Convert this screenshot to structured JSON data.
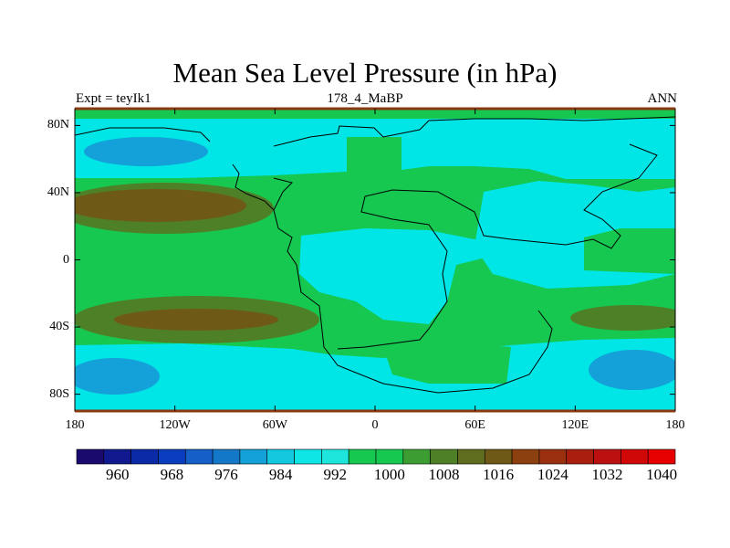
{
  "title": "Mean Sea Level Pressure (in hPa)",
  "subtitle_left": "Expt = teyIk1",
  "subtitle_center": "178_4_MaBP",
  "subtitle_right": "ANN",
  "y_axis": {
    "ticks": [
      {
        "label": "80N",
        "lat": 80
      },
      {
        "label": "40N",
        "lat": 40
      },
      {
        "label": "0",
        "lat": 0
      },
      {
        "label": "40S",
        "lat": -40
      },
      {
        "label": "80S",
        "lat": -80
      }
    ]
  },
  "x_axis": {
    "ticks": [
      {
        "label": "180",
        "lon": -180
      },
      {
        "label": "120W",
        "lon": -120
      },
      {
        "label": "60W",
        "lon": -60
      },
      {
        "label": "0",
        "lon": 0
      },
      {
        "label": "60E",
        "lon": 60
      },
      {
        "label": "120E",
        "lon": 120
      },
      {
        "label": "180",
        "lon": 180
      }
    ]
  },
  "colorbar": {
    "colors": [
      "#1a0a6e",
      "#101a8e",
      "#0a2aa6",
      "#0a3cc0",
      "#1460c8",
      "#1478c8",
      "#14a0d8",
      "#14c8e0",
      "#0ee6e6",
      "#1ee6dc",
      "#16c850",
      "#16c850",
      "#3c9e32",
      "#4e8028",
      "#5e6e1e",
      "#6e5a16",
      "#8c4010",
      "#9a3010",
      "#aa1e10",
      "#bc1010",
      "#d00808",
      "#e60000"
    ],
    "labels": [
      "960",
      "968",
      "976",
      "984",
      "992",
      "1000",
      "1008",
      "1016",
      "1024",
      "1032",
      "1040"
    ]
  },
  "palette": {
    "green": "#16c850",
    "cyan": "#00e6e6",
    "blue": "#14a0d8",
    "darkolive": "#6e5a16",
    "olive": "#4e8028"
  }
}
